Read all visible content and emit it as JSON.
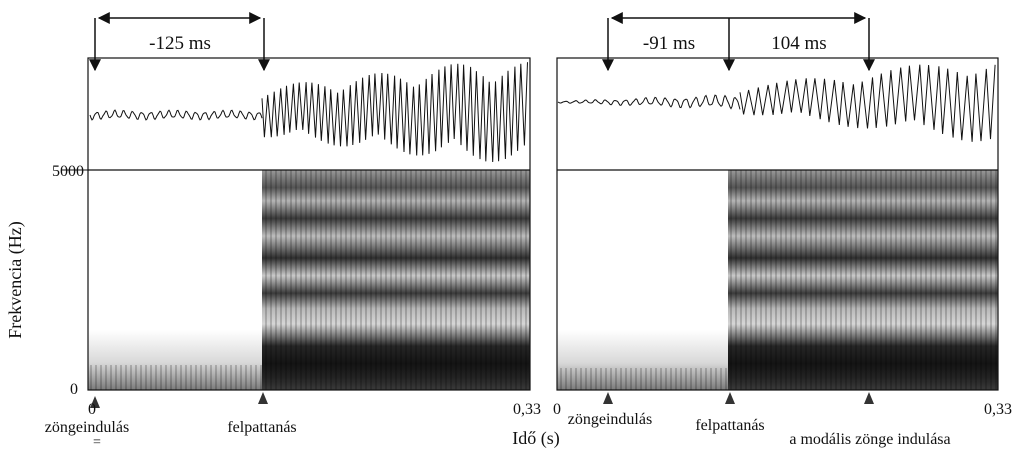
{
  "figure": {
    "y_axis": {
      "label": "Frekvencia (Hz)",
      "top_tick": "5000",
      "bottom_tick": "0"
    },
    "x_axis": {
      "label": "Idő (s)"
    },
    "left_panel": {
      "interval_label": "-125 ms",
      "x_start_tick": "0",
      "x_end_tick": "0,33",
      "markers": {
        "voicing_onset": "zöngeindulás",
        "voicing_onset_sub": "=",
        "release": "felpattanás"
      }
    },
    "right_panel": {
      "interval_label_1": "-91 ms",
      "interval_label_2": "104 ms",
      "x_start_tick": "0",
      "x_end_tick": "0,33",
      "markers": {
        "voicing_onset": "zöngeindulás",
        "release": "felpattanás",
        "modal_voicing_onset": "a modális zönge indulása"
      }
    },
    "colors": {
      "ink": "#111111",
      "background": "#ffffff"
    }
  }
}
